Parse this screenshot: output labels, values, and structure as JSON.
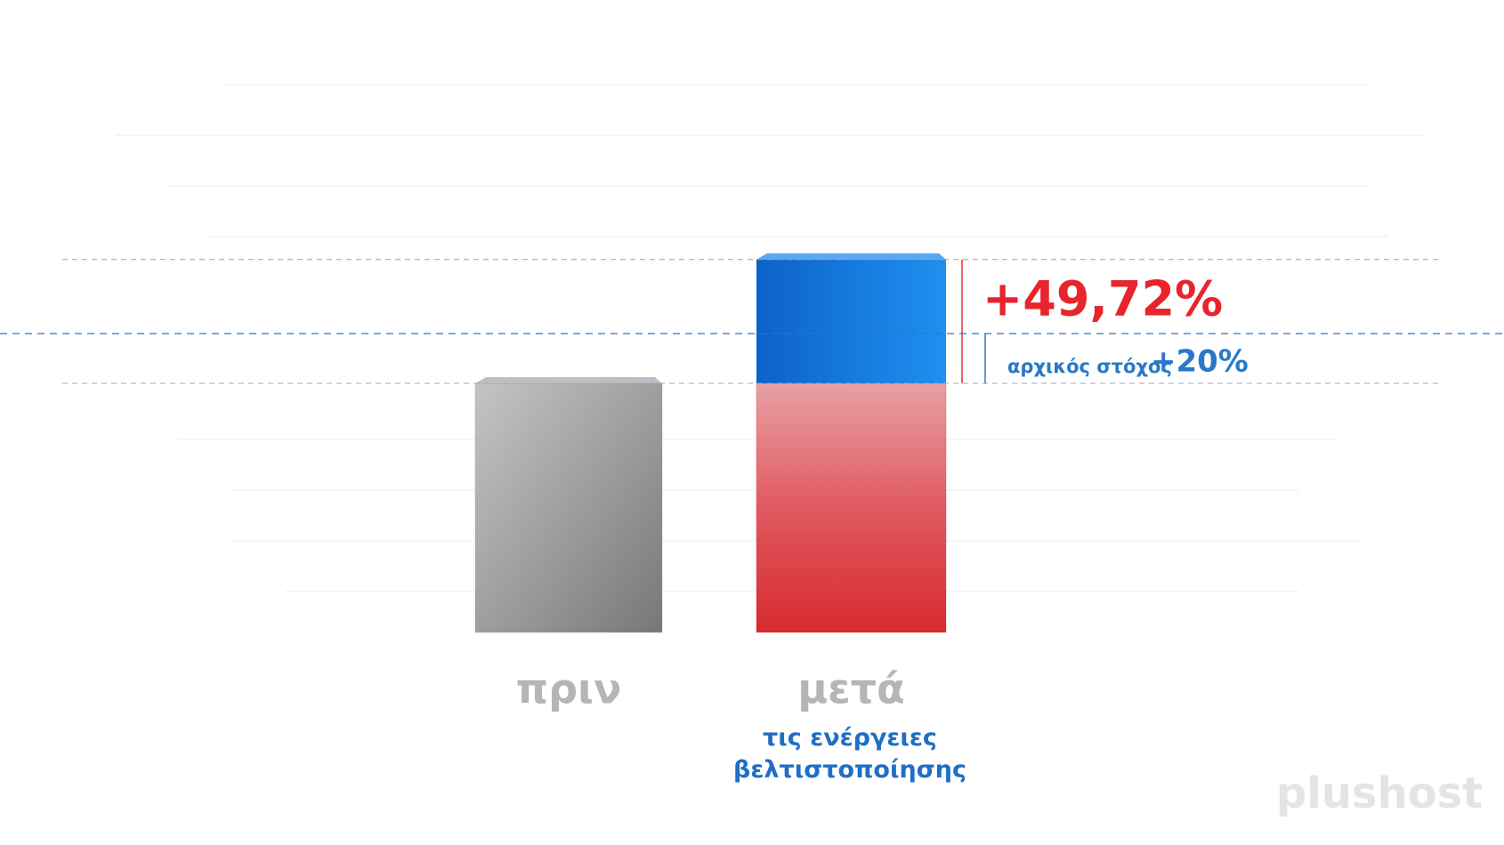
{
  "chart_data": {
    "type": "bar3d",
    "categories": [
      "πριν",
      "μετά"
    ],
    "category_note": "τις ενέργειες βελτιστοποίησης",
    "series": [
      {
        "colors": [
          "#8f8f93",
          "#d8303a"
        ],
        "values": [
          100,
          100
        ]
      },
      {
        "color": "#1a80e6",
        "values": [
          null,
          49.72
        ],
        "value_labels": [
          null,
          "+49,72%"
        ]
      }
    ],
    "target": {
      "label": "αρχικός στόχος",
      "value": 20,
      "value_label": "+20%",
      "color": "#2a78c8"
    },
    "watermark": "plushost"
  }
}
